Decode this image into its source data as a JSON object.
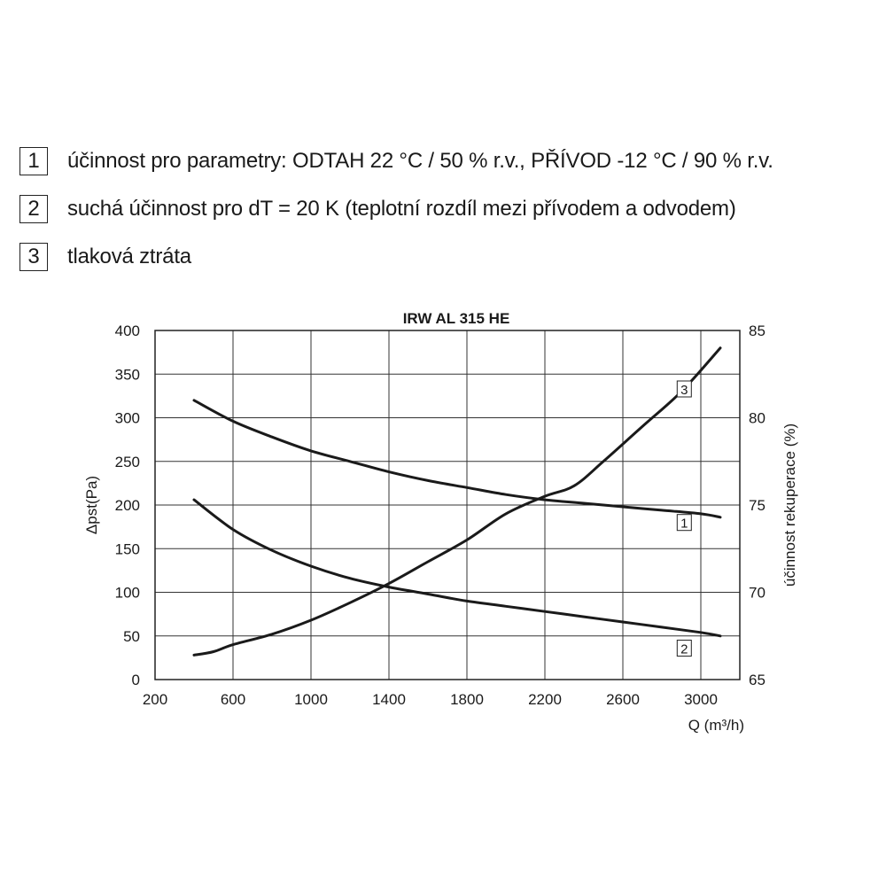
{
  "legend": [
    {
      "num": "1",
      "text": "účinnost pro parametry: ODTAH 22 °C / 50 % r.v., PŘÍVOD -12 °C / 90 % r.v."
    },
    {
      "num": "2",
      "text": "suchá účinnost pro dT = 20 K (teplotní rozdíl mezi přívodem a odvodem)"
    },
    {
      "num": "3",
      "text": "tlaková ztráta"
    }
  ],
  "chart_data": {
    "type": "line",
    "title": "IRW AL 315 HE",
    "xlabel": "Q (m³/h)",
    "ylabel": "Δpst(Pa)",
    "y2label": "účinnost rekuperace (%)",
    "xlim": [
      200,
      3200
    ],
    "ylim": [
      0,
      400
    ],
    "y2lim": [
      65,
      85
    ],
    "xticks": [
      200,
      600,
      1000,
      1400,
      1800,
      2200,
      2600,
      3000
    ],
    "yticks": [
      0,
      50,
      100,
      150,
      200,
      250,
      300,
      350,
      400
    ],
    "y2ticks": [
      65,
      70,
      75,
      80,
      85
    ],
    "grid": true,
    "series": [
      {
        "name": "1",
        "axis": "right",
        "x": [
          400,
          600,
          800,
          1000,
          1200,
          1400,
          1600,
          1800,
          2000,
          2200,
          2400,
          2600,
          2800,
          3000,
          3100
        ],
        "y": [
          81.0,
          79.8,
          78.9,
          78.1,
          77.5,
          76.9,
          76.4,
          76.0,
          75.6,
          75.3,
          75.1,
          74.9,
          74.7,
          74.5,
          74.3
        ]
      },
      {
        "name": "2",
        "axis": "right",
        "x": [
          400,
          600,
          800,
          1000,
          1200,
          1400,
          1600,
          1800,
          2000,
          2200,
          2400,
          2600,
          2800,
          3000,
          3100
        ],
        "y": [
          75.3,
          73.6,
          72.4,
          71.5,
          70.8,
          70.3,
          69.9,
          69.5,
          69.2,
          68.9,
          68.6,
          68.3,
          68.0,
          67.7,
          67.5
        ]
      },
      {
        "name": "3",
        "axis": "left",
        "x": [
          400,
          500,
          600,
          800,
          1000,
          1200,
          1400,
          1600,
          1800,
          2000,
          2200,
          2350,
          2500,
          2700,
          2900,
          3100
        ],
        "y": [
          28,
          32,
          40,
          52,
          68,
          88,
          110,
          135,
          160,
          190,
          210,
          222,
          250,
          290,
          330,
          380
        ]
      }
    ]
  }
}
